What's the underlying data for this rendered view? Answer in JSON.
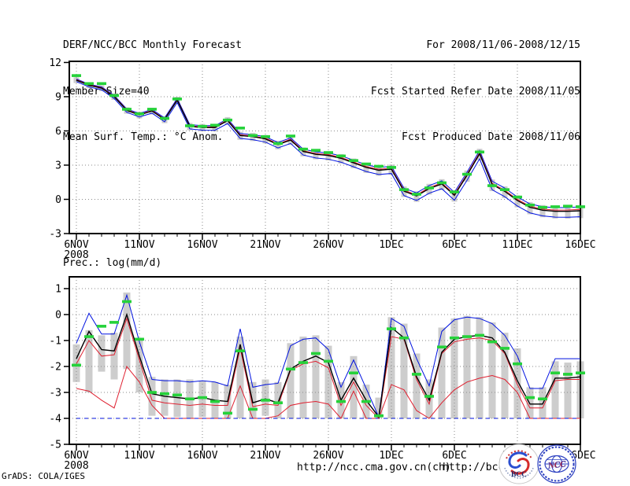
{
  "header": {
    "left_lines": [
      "DERF/NCC/BCC Monthly Forecast",
      "Member Size=40",
      "Mean Surf. Temp.: °C Anom."
    ],
    "right_lines": [
      "For 2008/11/06-2008/12/15",
      "Fcst Started Refer Date 2008/11/05",
      "Fcst Produced Date 2008/11/06"
    ]
  },
  "footer": {
    "credit": "GrADS: COLA/IGES",
    "url_ncc": "http://ncc.cma.gov.cn(ch)",
    "url_bcc": "http://bcc.c",
    "logo_bcc_label": "BCC",
    "logo_ncc_label": "NCC"
  },
  "colors": {
    "blue": "#0012e0",
    "red": "#df2030",
    "black": "#000000",
    "green": "#25d23a",
    "bar": "#cdcdcd",
    "grid": "#8a8a8a"
  },
  "chart_data": [
    {
      "type": "line",
      "name": "surface-temp-anomaly-panel",
      "title": "Mean Surf. Temp.: °C Anom.",
      "days": 41,
      "ylim": [
        -3,
        12.1
      ],
      "yticks": [
        -3,
        0,
        3,
        6,
        9,
        12
      ],
      "grid_yticks": [
        0,
        3,
        6,
        9
      ],
      "x_tick_days": [
        0,
        5,
        10,
        15,
        20,
        25,
        30,
        35,
        40
      ],
      "x_tick_labels": [
        "6NOV",
        "11NOV",
        "16NOV",
        "21NOV",
        "26NOV",
        "1DEC",
        "6DEC",
        "11DEC",
        "16DEC"
      ],
      "x_sub_label": "2008",
      "legend": "off",
      "bar_pad": [
        0.12,
        0.15
      ],
      "series": [
        {
          "name": "blue-lower-envelope",
          "color": "blue",
          "style": "line",
          "width": 1,
          "values": [
            10.32,
            9.86,
            9.6,
            8.84,
            7.63,
            7.22,
            7.56,
            6.8,
            8.49,
            6.18,
            6.07,
            6.06,
            6.65,
            5.34,
            5.23,
            5.02,
            4.51,
            4.9,
            3.89,
            3.63,
            3.52,
            3.26,
            2.85,
            2.44,
            2.18,
            2.27,
            0.33,
            -0.1,
            0.54,
            0.93,
            -0.08,
            1.66,
            3.55,
            0.84,
            0.23,
            -0.58,
            -1.19,
            -1.45,
            -1.56,
            -1.57,
            -1.53
          ]
        },
        {
          "name": "blue-upper-envelope",
          "color": "blue",
          "style": "line",
          "width": 1,
          "values": [
            10.55,
            10.1,
            9.86,
            9.11,
            7.92,
            7.53,
            7.88,
            7.14,
            8.84,
            6.55,
            6.46,
            6.46,
            7.06,
            5.77,
            5.68,
            5.48,
            4.99,
            5.39,
            4.4,
            4.16,
            4.06,
            3.82,
            3.43,
            3.03,
            2.79,
            2.9,
            0.98,
            0.56,
            1.21,
            1.62,
            0.62,
            2.38,
            4.28,
            1.59,
            0.99,
            0.2,
            -0.4,
            -0.65,
            -0.73,
            -0.72,
            -0.66
          ]
        },
        {
          "name": "red-median",
          "color": "red",
          "style": "line",
          "width": 1,
          "values": [
            10.5,
            10.05,
            9.8,
            9.05,
            7.85,
            7.45,
            7.8,
            7.05,
            8.75,
            6.45,
            6.36,
            6.36,
            6.96,
            5.66,
            5.56,
            5.37,
            4.87,
            5.27,
            4.27,
            4.02,
            3.93,
            3.68,
            3.28,
            2.88,
            2.64,
            2.74,
            0.81,
            0.39,
            1.04,
            1.44,
            0.45,
            2.2,
            4.1,
            1.4,
            0.8,
            0.0,
            -0.6,
            -0.85,
            -0.94,
            -0.93,
            -0.88
          ]
        },
        {
          "name": "ensemble-mean",
          "color": "black",
          "style": "line",
          "width": 1.4,
          "values": [
            10.45,
            10.0,
            9.75,
            9.0,
            7.8,
            7.4,
            7.75,
            7.0,
            8.7,
            6.4,
            6.3,
            6.3,
            6.9,
            5.6,
            5.5,
            5.3,
            4.8,
            5.2,
            4.2,
            3.95,
            3.85,
            3.6,
            3.2,
            2.8,
            2.55,
            2.65,
            0.72,
            0.3,
            0.95,
            1.35,
            0.35,
            2.1,
            4.0,
            1.3,
            0.7,
            -0.1,
            -0.7,
            -0.95,
            -1.05,
            -1.05,
            -1.0
          ]
        },
        {
          "name": "green-analysis-marks",
          "color": "green",
          "style": "hmarker",
          "values": [
            10.85,
            10.15,
            10.15,
            9.1,
            7.9,
            7.5,
            7.9,
            7.1,
            8.8,
            6.45,
            6.4,
            6.5,
            6.95,
            6.25,
            5.6,
            5.5,
            4.9,
            5.55,
            4.4,
            4.3,
            4.1,
            3.8,
            3.4,
            3.1,
            2.9,
            2.8,
            0.85,
            0.45,
            1.0,
            1.45,
            0.65,
            2.2,
            4.15,
            1.2,
            0.85,
            0.2,
            -0.5,
            -0.7,
            -0.65,
            -0.6,
            -0.65
          ]
        }
      ]
    },
    {
      "type": "line",
      "name": "precipitation-panel",
      "title": "Prec.: log(mm/d)",
      "days": 41,
      "ylim": [
        -5,
        1.4545
      ],
      "yticks": [
        1,
        0,
        -1,
        -2,
        -3,
        -4,
        -5
      ],
      "grid_yticks": [
        1,
        0,
        -1,
        -2,
        -3,
        -4
      ],
      "x_tick_days": [
        0,
        5,
        10,
        15,
        20,
        25,
        30,
        35,
        40
      ],
      "x_tick_labels": [
        "6NOV",
        "11NOV",
        "16NOV",
        "21NOV",
        "26NOV",
        "1DEC",
        "6DEC",
        "11DEC",
        "16DEC"
      ],
      "x_sub_label": "2008",
      "legend": "off",
      "bars": [
        [
          -2.6,
          -1.15
        ],
        [
          -3.0,
          -0.6
        ],
        [
          -2.2,
          -0.8
        ],
        [
          -2.5,
          -0.7
        ],
        [
          -2.1,
          0.85
        ],
        [
          -3.0,
          -0.9
        ],
        [
          -3.9,
          -2.4
        ],
        [
          -3.9,
          -2.5
        ],
        [
          -3.95,
          -2.5
        ],
        [
          -4,
          -2.5
        ],
        [
          -3.95,
          -2.55
        ],
        [
          -4,
          -2.6
        ],
        [
          -4,
          -2.7
        ],
        [
          -4,
          -0.85
        ],
        [
          -4,
          -2.6
        ],
        [
          -3.9,
          -2.5
        ],
        [
          -4,
          -2.6
        ],
        [
          -4,
          -1.1
        ],
        [
          -4,
          -0.85
        ],
        [
          -4,
          -0.8
        ],
        [
          -4,
          -1.2
        ],
        [
          -4,
          -2.6
        ],
        [
          -4,
          -1.6
        ],
        [
          -4,
          -2.7
        ],
        [
          -4,
          -3.2
        ],
        [
          -4,
          -0.1
        ],
        [
          -4,
          -0.35
        ],
        [
          -4,
          -1.5
        ],
        [
          -4,
          -2.5
        ],
        [
          -4,
          -0.5
        ],
        [
          -4,
          -0.15
        ],
        [
          -4,
          -0.05
        ],
        [
          -4,
          -0.1
        ],
        [
          -4,
          -0.3
        ],
        [
          -4,
          -0.7
        ],
        [
          -4,
          -1.3
        ],
        [
          -4,
          -2.8
        ],
        [
          -4,
          -2.8
        ],
        [
          -4,
          -1.8
        ],
        [
          -4,
          -1.85
        ],
        [
          -4,
          -1.8
        ]
      ],
      "series": [
        {
          "name": "red-lower-envelope",
          "color": "red",
          "style": "line",
          "width": 1,
          "values": [
            -2.85,
            -2.95,
            -3.3,
            -3.6,
            -2.0,
            -2.6,
            -3.5,
            -4,
            -4,
            -4,
            -4,
            -4,
            -4,
            -2.75,
            -4,
            -4,
            -3.9,
            -3.5,
            -3.4,
            -3.35,
            -3.45,
            -4,
            -2.95,
            -4,
            -4,
            -2.7,
            -2.9,
            -3.7,
            -4,
            -3.4,
            -2.9,
            -2.6,
            -2.45,
            -2.35,
            -2.5,
            -3.0,
            -4,
            -4,
            -4,
            -4,
            -4
          ]
        },
        {
          "name": "blue-lower-floor",
          "color": "blue",
          "style": "line",
          "width": 1,
          "dash": "5 5",
          "values": [
            -4,
            -4,
            -4,
            -4,
            -4,
            -4,
            -4,
            -4,
            -4,
            -4,
            -4,
            -4,
            -4,
            -4,
            -4,
            -4,
            -4,
            -4,
            -4,
            -4,
            -4,
            -4,
            -4,
            -4,
            -4,
            -4,
            -4,
            -4,
            -4,
            -4,
            -4,
            -4,
            -4,
            -4,
            -4,
            -4,
            -4,
            -4,
            -4,
            -4,
            -4
          ]
        },
        {
          "name": "blue-upper-envelope",
          "color": "blue",
          "style": "line",
          "width": 1,
          "values": [
            -1.1,
            0.05,
            -0.75,
            -0.75,
            0.75,
            -1.05,
            -2.5,
            -2.55,
            -2.55,
            -2.6,
            -2.55,
            -2.6,
            -2.75,
            -0.55,
            -2.8,
            -2.7,
            -2.65,
            -1.2,
            -0.95,
            -0.9,
            -1.35,
            -2.8,
            -1.75,
            -2.85,
            -3.95,
            -0.15,
            -0.45,
            -1.7,
            -2.75,
            -0.65,
            -0.2,
            -0.1,
            -0.15,
            -0.35,
            -0.8,
            -1.6,
            -2.85,
            -2.85,
            -1.7,
            -1.7,
            -1.7
          ]
        },
        {
          "name": "red-upper-median",
          "color": "red",
          "style": "line",
          "width": 1,
          "values": [
            -1.9,
            -1.0,
            -1.6,
            -1.55,
            -0.15,
            -1.75,
            -3.3,
            -3.4,
            -3.45,
            -3.5,
            -3.45,
            -3.5,
            -3.5,
            -1.3,
            -3.55,
            -3.45,
            -3.5,
            -2.15,
            -1.9,
            -1.8,
            -2.05,
            -3.5,
            -2.6,
            -3.5,
            -4.0,
            -0.85,
            -0.95,
            -2.5,
            -3.45,
            -1.5,
            -1.05,
            -0.95,
            -0.9,
            -1.0,
            -1.5,
            -2.7,
            -3.6,
            -3.6,
            -2.55,
            -2.5,
            -2.5
          ]
        },
        {
          "name": "ensemble-mean",
          "color": "black",
          "style": "line",
          "width": 1.4,
          "values": [
            -1.7,
            -0.65,
            -1.35,
            -1.4,
            0.0,
            -1.6,
            -3.05,
            -3.15,
            -3.2,
            -3.25,
            -3.2,
            -3.3,
            -3.35,
            -1.15,
            -3.4,
            -3.25,
            -3.4,
            -2.1,
            -1.8,
            -1.6,
            -1.85,
            -3.3,
            -2.45,
            -3.3,
            -3.95,
            -0.5,
            -0.9,
            -2.4,
            -3.3,
            -1.45,
            -0.95,
            -0.85,
            -0.8,
            -0.9,
            -1.45,
            -2.55,
            -3.45,
            -3.45,
            -2.45,
            -2.45,
            -2.4
          ]
        },
        {
          "name": "green-analysis-marks",
          "color": "green",
          "style": "hmarker",
          "values": [
            -1.95,
            -0.85,
            -0.45,
            -0.3,
            0.5,
            -0.95,
            -3.0,
            -3.05,
            -3.1,
            -3.25,
            -3.2,
            -3.35,
            -3.8,
            -1.4,
            -3.65,
            -3.3,
            -3.4,
            -2.1,
            -1.85,
            -1.5,
            -1.8,
            -3.35,
            -2.25,
            -3.35,
            -3.9,
            -0.55,
            -0.9,
            -2.3,
            -3.15,
            -1.25,
            -0.9,
            -0.85,
            -0.8,
            -1.05,
            -1.3,
            -1.9,
            -3.2,
            -3.25,
            -2.25,
            -2.3,
            -2.25
          ]
        }
      ]
    }
  ]
}
